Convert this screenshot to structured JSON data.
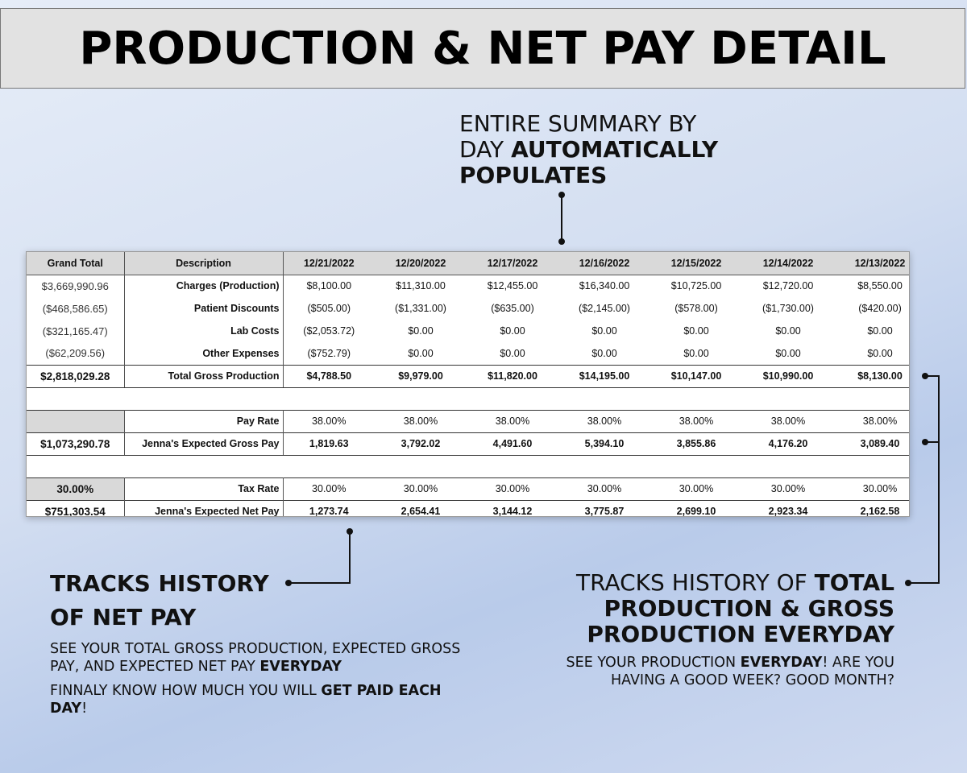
{
  "banner": {
    "title": "PRODUCTION & NET PAY DETAIL"
  },
  "top_callout": {
    "line1": "ENTIRE SUMMARY BY",
    "line2_plain": "DAY ",
    "line2_bold": "AUTOMATICALLY",
    "line3_bold": "POPULATES"
  },
  "table": {
    "headers": {
      "grand_total": "Grand Total",
      "description": "Description"
    },
    "dates": [
      "12/21/2022",
      "12/20/2022",
      "12/17/2022",
      "12/16/2022",
      "12/15/2022",
      "12/14/2022",
      "12/13/2022"
    ],
    "rows": {
      "charges": {
        "grand_total": "$3,669,990.96",
        "label": "Charges (Production)",
        "values": [
          "$8,100.00",
          "$11,310.00",
          "$12,455.00",
          "$16,340.00",
          "$10,725.00",
          "$12,720.00",
          "$8,550.00"
        ]
      },
      "discounts": {
        "grand_total": "($468,586.65)",
        "label": "Patient Discounts",
        "values": [
          "($505.00)",
          "($1,331.00)",
          "($635.00)",
          "($2,145.00)",
          "($578.00)",
          "($1,730.00)",
          "($420.00)"
        ]
      },
      "lab": {
        "grand_total": "($321,165.47)",
        "label": "Lab Costs",
        "values": [
          "($2,053.72)",
          "$0.00",
          "$0.00",
          "$0.00",
          "$0.00",
          "$0.00",
          "$0.00"
        ]
      },
      "other": {
        "grand_total": "($62,209.56)",
        "label": "Other Expenses",
        "values": [
          "($752.79)",
          "$0.00",
          "$0.00",
          "$0.00",
          "$0.00",
          "$0.00",
          "$0.00"
        ]
      },
      "total_gross": {
        "grand_total": "$2,818,029.28",
        "label": "Total Gross Production",
        "values": [
          "$4,788.50",
          "$9,979.00",
          "$11,820.00",
          "$14,195.00",
          "$10,147.00",
          "$10,990.00",
          "$8,130.00"
        ]
      },
      "pay_rate": {
        "grand_total": "",
        "label": "Pay Rate",
        "values": [
          "38.00%",
          "38.00%",
          "38.00%",
          "38.00%",
          "38.00%",
          "38.00%",
          "38.00%"
        ]
      },
      "gross_pay": {
        "grand_total": "$1,073,290.78",
        "label": "Jenna's Expected Gross Pay",
        "values": [
          "1,819.63",
          "3,792.02",
          "4,491.60",
          "5,394.10",
          "3,855.86",
          "4,176.20",
          "3,089.40"
        ]
      },
      "tax_rate": {
        "grand_total": "30.00%",
        "label": "Tax Rate",
        "values": [
          "30.00%",
          "30.00%",
          "30.00%",
          "30.00%",
          "30.00%",
          "30.00%",
          "30.00%"
        ]
      },
      "net_pay": {
        "grand_total": "$751,303.54",
        "label": "Jenna's Expected Net Pay",
        "values": [
          "1,273.74",
          "2,654.41",
          "3,144.12",
          "3,775.87",
          "2,699.10",
          "2,923.34",
          "2,162.58"
        ]
      }
    }
  },
  "left_callout": {
    "title_line1": "TRACKS HISTORY",
    "title_line2": "OF NET PAY",
    "p1_plain": "SEE YOUR TOTAL GROSS PRODUCTION, EXPECTED GROSS PAY, AND EXPECTED NET PAY ",
    "p1_bold": "EVERYDAY",
    "p2_plain": "FINNALY KNOW HOW MUCH YOU WILL ",
    "p2_bold": "GET PAID EACH DAY",
    "p2_end": "!"
  },
  "right_callout": {
    "title_plain": "TRACKS HISTORY OF ",
    "title_bold1": "TOTAL",
    "title_bold2": "PRODUCTION & GROSS",
    "title_bold3": "PRODUCTION EVERYDAY",
    "p_plain1": "SEE YOUR PRODUCTION ",
    "p_bold": "EVERYDAY",
    "p_plain2": "! ARE YOU HAVING A GOOD WEEK? GOOD MONTH?"
  },
  "colors": {
    "header_fill": "#d9d9d9",
    "connector": "#111111"
  }
}
